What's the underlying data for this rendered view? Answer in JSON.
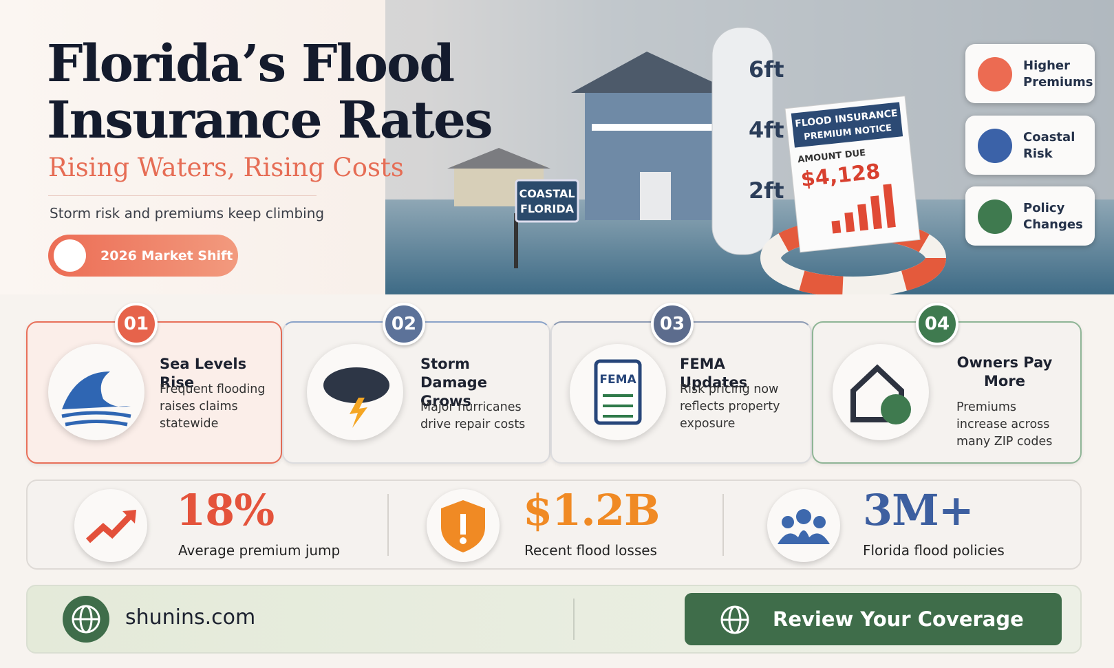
{
  "header": {
    "title_line1": "Florida’s Flood",
    "title_line2": "Insurance Rates",
    "subtitle": "Rising Waters, Rising Costs",
    "tagline": "Storm risk and premiums keep climbing",
    "badge": "2026 Market Shift"
  },
  "illustration": {
    "gauge_marks": [
      "6ft",
      "4ft",
      "2ft"
    ],
    "sign_line1": "COASTAL",
    "sign_line2": "FLORIDA",
    "notice_title_line1": "FLOOD INSURANCE",
    "notice_title_line2": "PREMIUM NOTICE",
    "notice_label": "AMOUNT DUE",
    "notice_amount": "$4,128"
  },
  "side_tags": [
    {
      "line1": "Higher",
      "line2": "Premiums"
    },
    {
      "line1": "Coastal",
      "line2": "Risk"
    },
    {
      "line1": "Policy",
      "line2": "Changes"
    }
  ],
  "steps": [
    {
      "number": "01",
      "title": "Sea Levels Rise",
      "text": "Frequent flooding raises claims statewide"
    },
    {
      "number": "02",
      "title": "Storm Damage Grows",
      "text": "Major hurricanes drive repair costs"
    },
    {
      "number": "03",
      "title": "FEMA Updates",
      "text": "Risk pricing now reflects property exposure",
      "icon_label": "FEMA"
    },
    {
      "number": "04",
      "title": "Owners Pay More",
      "text": "Premiums increase across many ZIP codes"
    }
  ],
  "stats": [
    {
      "value": "18%",
      "label": "Average premium jump"
    },
    {
      "value": "$1.2B",
      "label": "Recent flood losses"
    },
    {
      "value": "3M+",
      "label": "Florida flood policies"
    }
  ],
  "footer": {
    "url": "shunins.com",
    "button": "Review Your Coverage"
  }
}
